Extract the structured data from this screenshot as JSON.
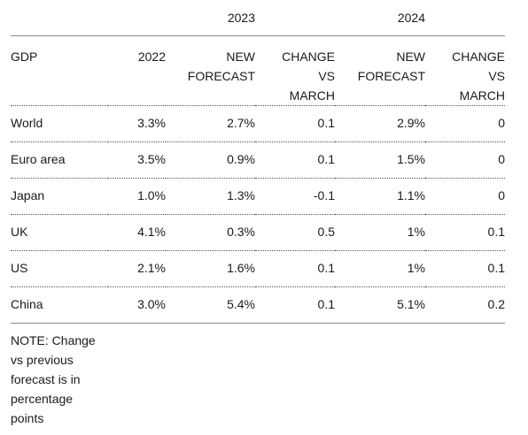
{
  "years": [
    "2023",
    "2024"
  ],
  "headers": [
    "GDP",
    "2022",
    "NEW\nFORECAST",
    "CHANGE\nVS\nMARCH",
    "NEW\nFORECAST",
    "CHANGE\nVS\nMARCH"
  ],
  "rows": [
    {
      "name": "World",
      "y2022": "3.3%",
      "f2023": "2.7%",
      "c2023": "0.1",
      "f2024": "2.9%",
      "c2024": "0"
    },
    {
      "name": "Euro area",
      "y2022": "3.5%",
      "f2023": "0.9%",
      "c2023": "0.1",
      "f2024": "1.5%",
      "c2024": "0"
    },
    {
      "name": "Japan",
      "y2022": "1.0%",
      "f2023": "1.3%",
      "c2023": "-0.1",
      "f2024": "1.1%",
      "c2024": "0"
    },
    {
      "name": "UK",
      "y2022": "4.1%",
      "f2023": "0.3%",
      "c2023": "0.5",
      "f2024": "1%",
      "c2024": "0.1"
    },
    {
      "name": "US",
      "y2022": "2.1%",
      "f2023": "1.6%",
      "c2023": "0.1",
      "f2024": "1%",
      "c2024": "0.1"
    },
    {
      "name": "China",
      "y2022": "3.0%",
      "f2023": "5.4%",
      "c2023": "0.1",
      "f2024": "5.1%",
      "c2024": "0.2"
    }
  ],
  "note": "NOTE: Change vs previous forecast is in percentage points"
}
